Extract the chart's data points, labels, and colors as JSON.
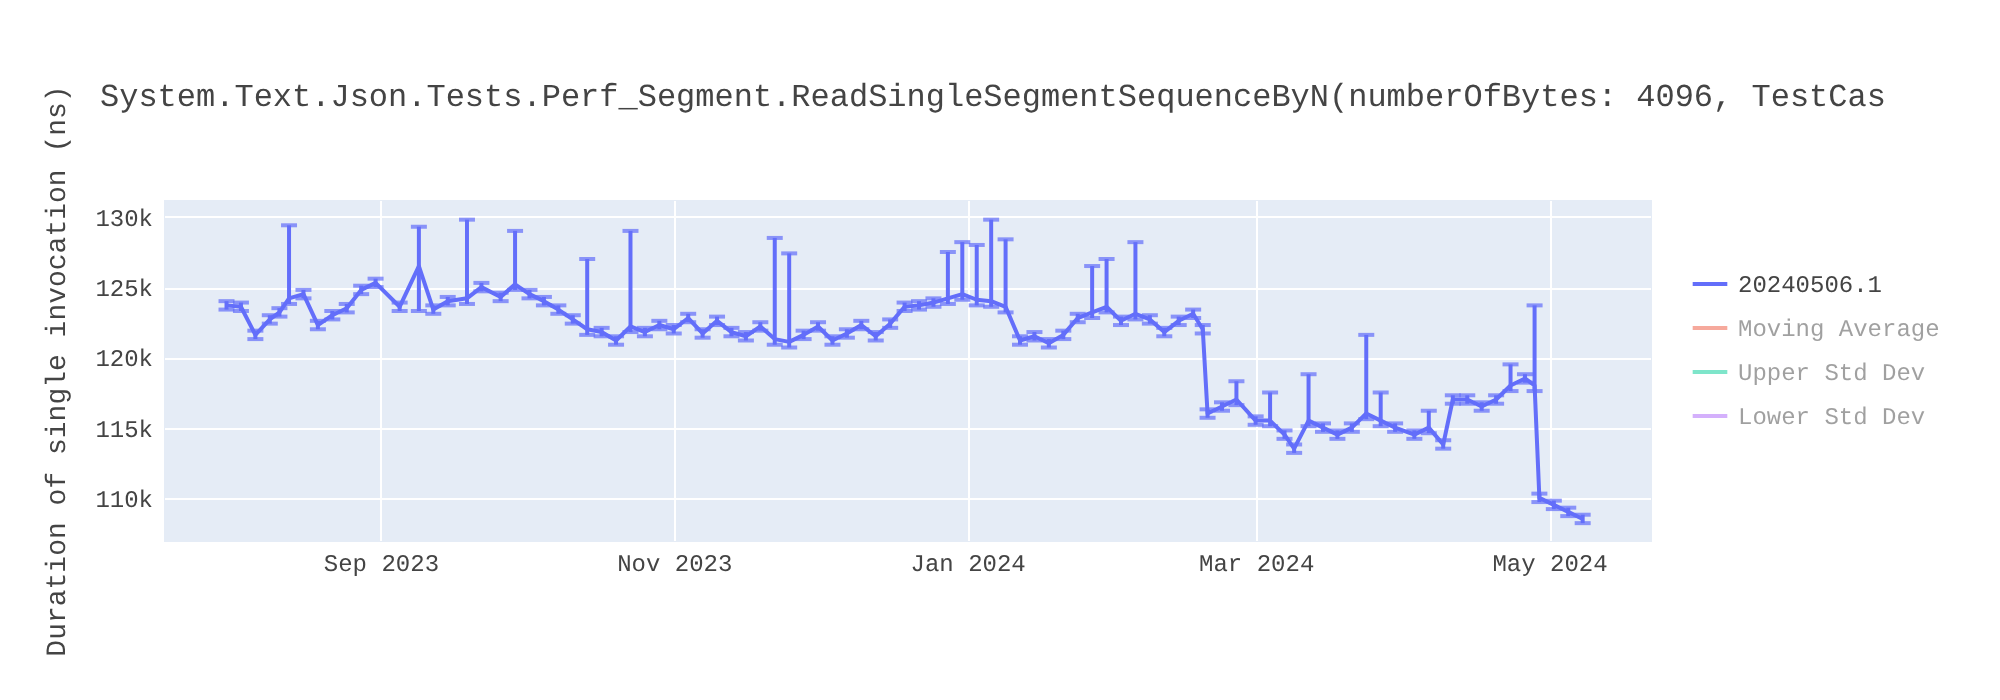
{
  "chart_data": {
    "type": "line",
    "title": "System.Text.Json.Tests.Perf_Segment.ReadSingleSegmentSequenceByN(numberOfBytes: 4096, TestCas",
    "ylabel": "Duration of single invocation (ns)",
    "x": [
      "2023-07-31",
      "2023-08-03",
      "2023-08-06",
      "2023-08-09",
      "2023-08-11",
      "2023-08-13",
      "2023-08-16",
      "2023-08-19",
      "2023-08-22",
      "2023-08-25",
      "2023-08-28",
      "2023-08-31",
      "2023-09-05",
      "2023-09-09",
      "2023-09-12",
      "2023-09-15",
      "2023-09-19",
      "2023-09-22",
      "2023-09-26",
      "2023-09-29",
      "2023-10-02",
      "2023-10-05",
      "2023-10-08",
      "2023-10-11",
      "2023-10-14",
      "2023-10-17",
      "2023-10-20",
      "2023-10-23",
      "2023-10-26",
      "2023-10-29",
      "2023-11-01",
      "2023-11-04",
      "2023-11-07",
      "2023-11-10",
      "2023-11-13",
      "2023-11-16",
      "2023-11-19",
      "2023-11-22",
      "2023-11-25",
      "2023-11-28",
      "2023-12-01",
      "2023-12-04",
      "2023-12-07",
      "2023-12-10",
      "2023-12-13",
      "2023-12-16",
      "2023-12-19",
      "2023-12-22",
      "2023-12-25",
      "2023-12-28",
      "2023-12-31",
      "2024-01-03",
      "2024-01-06",
      "2024-01-09",
      "2024-01-12",
      "2024-01-15",
      "2024-01-18",
      "2024-01-21",
      "2024-01-24",
      "2024-01-27",
      "2024-01-30",
      "2024-02-02",
      "2024-02-05",
      "2024-02-08",
      "2024-02-11",
      "2024-02-14",
      "2024-02-17",
      "2024-02-19",
      "2024-02-20",
      "2024-02-23",
      "2024-02-26",
      "2024-03-01",
      "2024-03-04",
      "2024-03-07",
      "2024-03-09",
      "2024-03-12",
      "2024-03-15",
      "2024-03-18",
      "2024-03-21",
      "2024-03-24",
      "2024-03-27",
      "2024-03-30",
      "2024-04-03",
      "2024-04-06",
      "2024-04-09",
      "2024-04-11",
      "2024-04-14",
      "2024-04-17",
      "2024-04-20",
      "2024-04-23",
      "2024-04-26",
      "2024-04-28",
      "2024-04-29",
      "2024-05-02",
      "2024-05-05",
      "2024-05-08"
    ],
    "series": [
      {
        "name": "20240506.1",
        "color": "#636efa",
        "values": [
          123700,
          123600,
          121600,
          122700,
          123200,
          124200,
          124500,
          122300,
          123000,
          123500,
          124800,
          125300,
          123600,
          126500,
          123400,
          124000,
          124200,
          125000,
          124300,
          125200,
          124500,
          124000,
          123400,
          122700,
          122000,
          121800,
          121200,
          122200,
          121800,
          122300,
          122000,
          122800,
          121700,
          122600,
          121800,
          121500,
          122200,
          121300,
          121100,
          121600,
          122200,
          121200,
          121700,
          122300,
          121500,
          122400,
          123600,
          123700,
          123900,
          124200,
          124500,
          124100,
          124000,
          123600,
          121200,
          121500,
          121000,
          121600,
          122800,
          123200,
          123600,
          122600,
          123100,
          122700,
          121800,
          122600,
          123100,
          122000,
          116000,
          116500,
          117000,
          115500,
          115500,
          114500,
          113500,
          115500,
          115000,
          114500,
          115000,
          116000,
          115500,
          115000,
          114500,
          115000,
          113800,
          117000,
          117000,
          116500,
          117000,
          118000,
          118500,
          118000,
          110000,
          109500,
          109000,
          108500
        ],
        "errors": [
          300,
          300,
          300,
          300,
          300,
          [
            123800,
            129400
          ],
          300,
          300,
          300,
          300,
          300,
          300,
          300,
          [
            123300,
            129300
          ],
          300,
          300,
          [
            123800,
            129800
          ],
          300,
          300,
          [
            124800,
            129000
          ],
          300,
          300,
          300,
          300,
          [
            121600,
            127000
          ],
          300,
          300,
          [
            121800,
            129000
          ],
          300,
          300,
          300,
          300,
          300,
          300,
          300,
          300,
          300,
          [
            120900,
            128500
          ],
          [
            120700,
            127400
          ],
          300,
          300,
          300,
          300,
          300,
          300,
          300,
          300,
          300,
          300,
          [
            123800,
            127500
          ],
          [
            124100,
            128200
          ],
          [
            123700,
            128000
          ],
          [
            123600,
            129800
          ],
          [
            123200,
            128400
          ],
          300,
          300,
          300,
          300,
          300,
          [
            122800,
            126500
          ],
          [
            123200,
            127000
          ],
          300,
          [
            122700,
            128200
          ],
          300,
          300,
          300,
          300,
          300,
          300,
          300,
          [
            116600,
            118300
          ],
          300,
          [
            115100,
            117500
          ],
          300,
          300,
          [
            115100,
            118800
          ],
          300,
          300,
          300,
          [
            115600,
            121600
          ],
          [
            115100,
            117500
          ],
          300,
          300,
          [
            114600,
            116200
          ],
          300,
          300,
          300,
          300,
          300,
          [
            117600,
            119500
          ],
          300,
          [
            117600,
            123700
          ],
          300,
          300,
          300,
          300
        ]
      },
      {
        "name": "Moving Average",
        "color": "#ef553b",
        "values": [
          null,
          null,
          null,
          null,
          null,
          null,
          null,
          null,
          null,
          null,
          null,
          null,
          null,
          null,
          null,
          null,
          null,
          null,
          null,
          null,
          null,
          null,
          null,
          null,
          null,
          null,
          null,
          null,
          null,
          null,
          null,
          null,
          null,
          null,
          null,
          null,
          null,
          null,
          null,
          null,
          null,
          null,
          null,
          null,
          null,
          null,
          null,
          null,
          null,
          null,
          null,
          null,
          null,
          null,
          null,
          null,
          null,
          null,
          null,
          null,
          null,
          null,
          null,
          null,
          null,
          null,
          null,
          null,
          null,
          null,
          null,
          null,
          null,
          null,
          null,
          null,
          null,
          null,
          null,
          null,
          null,
          null,
          null,
          null,
          null,
          null,
          null,
          null,
          null,
          null,
          null,
          null,
          null,
          null,
          null,
          null
        ]
      },
      {
        "name": "Upper Std Dev",
        "color": "#00cc96",
        "values": [
          null,
          null,
          null,
          null,
          null,
          null,
          null,
          null,
          null,
          null,
          null,
          null,
          null,
          null,
          null,
          null,
          null,
          null,
          null,
          null,
          null,
          null,
          null,
          null,
          null,
          null,
          null,
          null,
          null,
          null,
          null,
          null,
          null,
          null,
          null,
          null,
          null,
          null,
          null,
          null,
          null,
          null,
          null,
          null,
          null,
          null,
          null,
          null,
          null,
          null,
          null,
          null,
          null,
          null,
          null,
          null,
          null,
          null,
          null,
          null,
          null,
          null,
          null,
          null,
          null,
          null,
          null,
          null,
          null,
          null,
          null,
          null,
          null,
          null,
          null,
          null,
          null,
          null,
          null,
          null,
          null,
          null,
          null,
          null,
          null,
          null,
          null,
          null,
          null,
          null,
          null,
          null,
          null,
          null,
          null,
          null
        ]
      },
      {
        "name": "Lower Std Dev",
        "color": "#ab63fa",
        "values": [
          null,
          null,
          null,
          null,
          null,
          null,
          null,
          null,
          null,
          null,
          null,
          null,
          null,
          null,
          null,
          null,
          null,
          null,
          null,
          null,
          null,
          null,
          null,
          null,
          null,
          null,
          null,
          null,
          null,
          null,
          null,
          null,
          null,
          null,
          null,
          null,
          null,
          null,
          null,
          null,
          null,
          null,
          null,
          null,
          null,
          null,
          null,
          null,
          null,
          null,
          null,
          null,
          null,
          null,
          null,
          null,
          null,
          null,
          null,
          null,
          null,
          null,
          null,
          null,
          null,
          null,
          null,
          null,
          null,
          null,
          null,
          null,
          null,
          null,
          null,
          null,
          null,
          null,
          null,
          null,
          null,
          null,
          null,
          null,
          null,
          null,
          null,
          null,
          null,
          null,
          null,
          null,
          null,
          null,
          null,
          null
        ]
      }
    ],
    "xlim": [
      "2023-07-18",
      "2024-05-22"
    ],
    "xticks": [
      {
        "value": "2023-09-01",
        "label": "Sep 2023"
      },
      {
        "value": "2023-11-01",
        "label": "Nov 2023"
      },
      {
        "value": "2024-01-01",
        "label": "Jan 2024"
      },
      {
        "value": "2024-03-01",
        "label": "Mar 2024"
      },
      {
        "value": "2024-05-01",
        "label": "May 2024"
      }
    ],
    "ylim": [
      107000,
      131200
    ],
    "yticks": [
      {
        "value": 110000,
        "label": "110k"
      },
      {
        "value": 115000,
        "label": "115k"
      },
      {
        "value": 120000,
        "label": "120k"
      },
      {
        "value": 125000,
        "label": "125k"
      },
      {
        "value": 130000,
        "label": "130k"
      }
    ],
    "grid": true,
    "legend": "right"
  }
}
